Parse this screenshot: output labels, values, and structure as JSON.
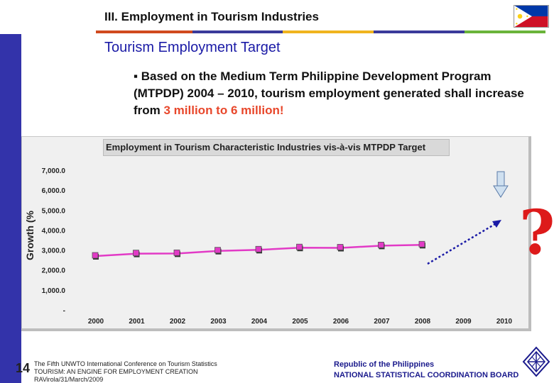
{
  "header": {
    "section_title": "III. Employment in Tourism Industries",
    "stripe_colors": [
      "#d04a1f",
      "#3a3a9a",
      "#f0b41e",
      "#3a3a9a",
      "#6ab43a"
    ]
  },
  "slide": {
    "title": "Tourism Employment Target",
    "bullet_text": "Based on the Medium Term Philippine Development Program (MTPDP) 2004 – 2010,  tourism employment generated shall increase from ",
    "bullet_highlight": "3 million to 6 million!",
    "highlight_color": "#e8472b"
  },
  "chart_data": {
    "type": "line",
    "title": "Employment in Tourism Characteristic Industries vis-à-vis MTPDP Target",
    "xlabel": "",
    "ylabel": "Growth (%",
    "categories": [
      "2000",
      "2001",
      "2002",
      "2003",
      "2004",
      "2005",
      "2006",
      "2007",
      "2008",
      "2009",
      "2010"
    ],
    "y_tick_labels": [
      "7,000.0",
      "6,000.0",
      "5,000.0",
      "4,000.0",
      "3,000.0",
      "2,000.0",
      "1,000.0",
      "-"
    ],
    "ylim": [
      0,
      7000
    ],
    "grid": false,
    "series": [
      {
        "values": [
          2700,
          2820,
          2830,
          2960,
          3010,
          3120,
          3110,
          3220,
          3260,
          null,
          null
        ],
        "color": "#e23ac6"
      }
    ],
    "annotation_symbol": "?",
    "annotation_color": "#dd1a1a"
  },
  "footer": {
    "page_number": "14",
    "conference_lines": [
      "The Fifth UNWTO International Conference on Tourism Statistics",
      "TOURISM: AN ENGINE FOR EMPLOYMENT CREATION",
      "RAVirola/31/March/2009"
    ],
    "org_lines": [
      "Republic of the Philippines",
      "NATIONAL STATISTICAL COORDINATION BOARD"
    ]
  },
  "icons": {
    "flag": "philippine-flag-icon",
    "logo": "nscb-logo-icon"
  }
}
